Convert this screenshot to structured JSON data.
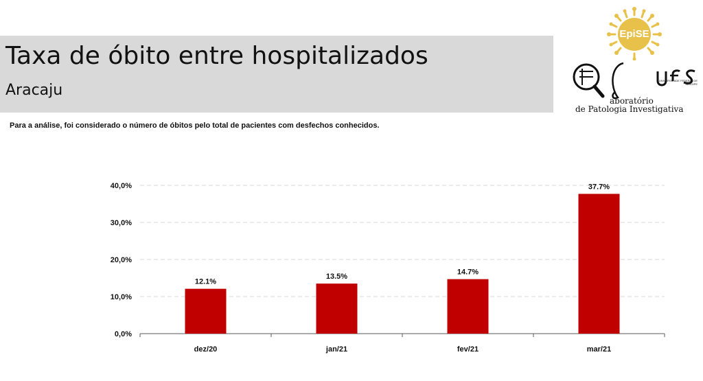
{
  "header": {
    "title": "Taxa de óbito entre hospitalizados",
    "subtitle": "Aracaju"
  },
  "note": "Para a análise, foi considerado o número de óbitos pelo total de pacientes com desfechos conhecidos.",
  "logos": {
    "episE": "EpiSE",
    "lab_name_line1": "aboratório",
    "lab_name_line2": "de Patologia Investigativa",
    "ufs_text": "ufs",
    "ufs_subtext": "UNIVERSIDADE FEDERAL DE SERGIPE"
  },
  "colors": {
    "bar": "#c00000",
    "grid": "#d9d9d9",
    "axis": "#595959"
  },
  "chart_data": {
    "type": "bar",
    "categories": [
      "dez/20",
      "jan/21",
      "fev/21",
      "mar/21"
    ],
    "values": [
      12.1,
      13.5,
      14.7,
      37.7
    ],
    "data_labels": [
      "12.1%",
      "13.5%",
      "14.7%",
      "37.7%"
    ],
    "y_ticks": [
      0,
      10,
      20,
      30,
      40
    ],
    "y_tick_labels": [
      "0,0%",
      "10,0%",
      "20,0%",
      "30,0%",
      "40,0%"
    ],
    "ylim": [
      0,
      40
    ],
    "grid": true,
    "legend": "none"
  }
}
